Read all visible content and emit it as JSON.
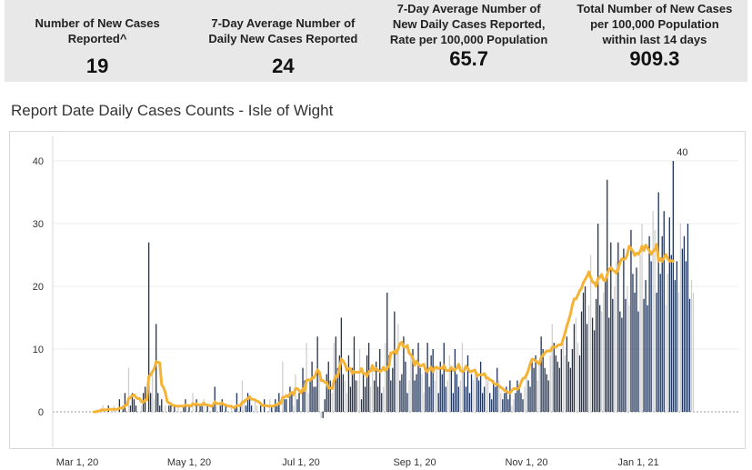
{
  "kpis": [
    {
      "label": "Number of New Cases\nReported^",
      "value": "19"
    },
    {
      "label": "7-Day Average Number of\nDaily New Cases Reported",
      "value": "24"
    },
    {
      "label": "7-Day Average Number of\nNew Daily Cases Reported,\nRate per 100,000 Population",
      "value": "65.7"
    },
    {
      "label": "Total Number of New Cases\nper 100,000 Population\nwithin last 14 days",
      "value": "909.3"
    }
  ],
  "chart_data": {
    "type": "bar",
    "title": "Report Date Daily Cases Counts - Isle of Wight",
    "xlabel": "",
    "ylabel": "",
    "ylim": [
      -2,
      45
    ],
    "yticks": [
      0,
      10,
      20,
      30,
      40
    ],
    "xticks": [
      {
        "label": "Mar 1, 20",
        "date": "2020-03-01"
      },
      {
        "label": "May 1, 20",
        "date": "2020-05-01"
      },
      {
        "label": "Jul 1, 20",
        "date": "2020-07-01"
      },
      {
        "label": "Sep 1, 20",
        "date": "2020-09-01"
      },
      {
        "label": "Nov 1, 20",
        "date": "2020-11-01"
      },
      {
        "label": "Jan 1, 21",
        "date": "2021-01-01"
      }
    ],
    "x_start": "2020-03-10",
    "series": [
      {
        "kind": "bars",
        "values": [
          0,
          0,
          0,
          0,
          0,
          1,
          0,
          0,
          1,
          0,
          0,
          1,
          0,
          0,
          2,
          0,
          1,
          3,
          0,
          7,
          1,
          3,
          2,
          1,
          0,
          0,
          1,
          3,
          4,
          0,
          27,
          3,
          6,
          2,
          14,
          3,
          1,
          2,
          0,
          1,
          0,
          1,
          1,
          0,
          1,
          0,
          1,
          0,
          0,
          1,
          2,
          0,
          1,
          0,
          3,
          0,
          2,
          0,
          1,
          1,
          2,
          0,
          1,
          0,
          0,
          1,
          4,
          1,
          0,
          1,
          2,
          0,
          1,
          0,
          0,
          1,
          0,
          1,
          3,
          0,
          1,
          5,
          2,
          1,
          3,
          2,
          1,
          0,
          2,
          1,
          0,
          1,
          0,
          2,
          0,
          0,
          2,
          1,
          0,
          2,
          1,
          3,
          0,
          8,
          2,
          2,
          0,
          4,
          3,
          1,
          6,
          2,
          3,
          0,
          7,
          5,
          11,
          3,
          5,
          8,
          4,
          4,
          12,
          6,
          -1,
          -1,
          2,
          6,
          8,
          5,
          3,
          11,
          12,
          7,
          9,
          15,
          6,
          5,
          3,
          9,
          4,
          7,
          12,
          5,
          5,
          10,
          2,
          6,
          4,
          9,
          11,
          4,
          7,
          5,
          8,
          4,
          10,
          3,
          4,
          11,
          19,
          9,
          5,
          7,
          16,
          10,
          14,
          5,
          6,
          12,
          8,
          3,
          5,
          9,
          10,
          5,
          6,
          11,
          7,
          6,
          3,
          7,
          11,
          4,
          9,
          10,
          5,
          7,
          3,
          8,
          6,
          11,
          4,
          5,
          9,
          7,
          3,
          10,
          6,
          4,
          5,
          11,
          7,
          4,
          9,
          3,
          6,
          5,
          7,
          6,
          5,
          8,
          3,
          4,
          6,
          5,
          3,
          2,
          5,
          4,
          7,
          5,
          3,
          2,
          3,
          4,
          2,
          5,
          1,
          2,
          3,
          5,
          4,
          3,
          2,
          4,
          6,
          5,
          4,
          8,
          7,
          9,
          5,
          8,
          12,
          10,
          7,
          6,
          5,
          9,
          14,
          11,
          9,
          8,
          7,
          10,
          11,
          9,
          12,
          8,
          7,
          10,
          14,
          15,
          11,
          9,
          16,
          19,
          20,
          14,
          17,
          25,
          15,
          13,
          18,
          30,
          17,
          16,
          19,
          21,
          37,
          15,
          27,
          18,
          20,
          24,
          27,
          16,
          15,
          26,
          18,
          20,
          17,
          29,
          22,
          19,
          23,
          16,
          25,
          30,
          18,
          21,
          17,
          28,
          24,
          32,
          29,
          19,
          35,
          22,
          28,
          32,
          17,
          22,
          31,
          25,
          40,
          21,
          24,
          19,
          30,
          26,
          28,
          24,
          30,
          18,
          21,
          19
        ],
        "color": "#1f3358"
      },
      {
        "kind": "line",
        "name": "7-day average",
        "values": [
          0,
          0,
          0.1,
          0.1,
          0.3,
          0.3,
          0.3,
          0.3,
          0.4,
          0.4,
          0.4,
          0.4,
          0.4,
          0.4,
          0.6,
          0.6,
          0.6,
          1.0,
          1.1,
          2.1,
          2.3,
          2.6,
          2.7,
          2.3,
          2.1,
          2.1,
          1.6,
          1.5,
          1.9,
          1.9,
          5.6,
          5.9,
          6.4,
          6.9,
          8.0,
          7.9,
          7.8,
          4.3,
          3.9,
          3.1,
          1.7,
          1.4,
          1.3,
          1.0,
          1.0,
          0.9,
          0.9,
          0.9,
          0.9,
          0.9,
          1.1,
          1.0,
          1.0,
          0.9,
          1.3,
          1.1,
          1.3,
          1.1,
          1.1,
          1.1,
          1.4,
          1.1,
          1.1,
          1.0,
          0.9,
          1.0,
          1.6,
          1.3,
          1.3,
          1.3,
          1.4,
          1.1,
          1.1,
          0.9,
          0.9,
          0.9,
          0.7,
          0.7,
          1.0,
          1.0,
          1.0,
          1.6,
          1.6,
          1.9,
          2.1,
          2.4,
          2.0,
          2.0,
          1.9,
          1.7,
          1.6,
          1.3,
          1.0,
          1.0,
          1.0,
          0.9,
          0.9,
          0.9,
          0.9,
          1.1,
          1.1,
          1.4,
          1.3,
          2.3,
          2.3,
          2.6,
          2.4,
          2.9,
          3.1,
          2.7,
          3.7,
          3.7,
          3.4,
          3.0,
          3.7,
          3.4,
          5.0,
          5.1,
          5.0,
          5.4,
          5.4,
          6.0,
          6.7,
          6.3,
          5.0,
          5.0,
          4.7,
          4.7,
          3.8,
          3.8,
          3.7,
          4.9,
          5.7,
          5.6,
          7.0,
          8.4,
          8.1,
          7.6,
          6.6,
          6.9,
          6.9,
          6.1,
          6.4,
          6.3,
          6.3,
          6.3,
          6.9,
          6.1,
          6.1,
          5.7,
          6.4,
          6.5,
          7.4,
          6.6,
          6.9,
          6.6,
          6.4,
          6.6,
          7.1,
          6.6,
          6.9,
          7.4,
          9.4,
          9.4,
          9.7,
          9.3,
          10.1,
          10.9,
          11.1,
          10.3,
          10.3,
          10.6,
          9.3,
          9.1,
          8.6,
          7.4,
          8.1,
          7.6,
          7.3,
          7.4,
          7.6,
          6.6,
          6.4,
          6.9,
          7.1,
          6.4,
          7.1,
          7.1,
          6.9,
          7.0,
          6.9,
          7.4,
          6.6,
          6.6,
          6.6,
          7.1,
          6.6,
          6.7,
          7.0,
          7.6,
          6.6,
          6.4,
          6.6,
          7.3,
          6.9,
          6.4,
          6.4,
          6.6,
          6.6,
          5.7,
          5.9,
          5.9,
          5.9,
          6.1,
          5.4,
          5.4,
          5.1,
          5.0,
          4.6,
          4.4,
          4.4,
          4.1,
          3.9,
          3.7,
          3.4,
          3.3,
          3.1,
          3.0,
          3.4,
          3.7,
          3.7,
          3.6,
          3.9,
          4.7,
          5.3,
          5.4,
          5.9,
          6.6,
          7.6,
          8.4,
          8.3,
          8.1,
          7.9,
          7.6,
          8.7,
          9.0,
          9.4,
          9.7,
          9.7,
          9.7,
          10.3,
          10.3,
          10.3,
          10.6,
          10.7,
          10.7,
          11.6,
          12.6,
          13.7,
          14.6,
          15.6,
          17.0,
          18.0,
          18.0,
          18.6,
          19.3,
          19.7,
          20.6,
          21.1,
          21.6,
          22.3,
          21.4,
          20.7,
          20.6,
          20.0,
          21.3,
          21.4,
          21.9,
          21.0,
          20.9,
          21.9,
          22.7,
          23.0,
          22.6,
          22.4,
          22.1,
          22.7,
          23.9,
          24.4,
          24.3,
          24.4,
          25.1,
          26.4,
          26.0,
          25.6,
          24.9,
          25.3,
          25.1,
          25.6,
          26.4,
          25.7,
          26.6,
          26.1,
          25.7,
          25.1,
          25.6,
          25.9,
          26.7,
          24.0,
          24.4,
          24.0,
          24.6,
          25.1,
          24.4,
          24.0,
          24.1,
          24.0
        ],
        "color": "#f5b335"
      }
    ],
    "annotations": [
      {
        "text": "40",
        "x_index": 321,
        "y": 40
      }
    ]
  },
  "colors": {
    "bar_dark": "#1f3358",
    "bar_light": "#cfcfcf",
    "line": "#f5b335",
    "band": "#e8e8e8"
  }
}
